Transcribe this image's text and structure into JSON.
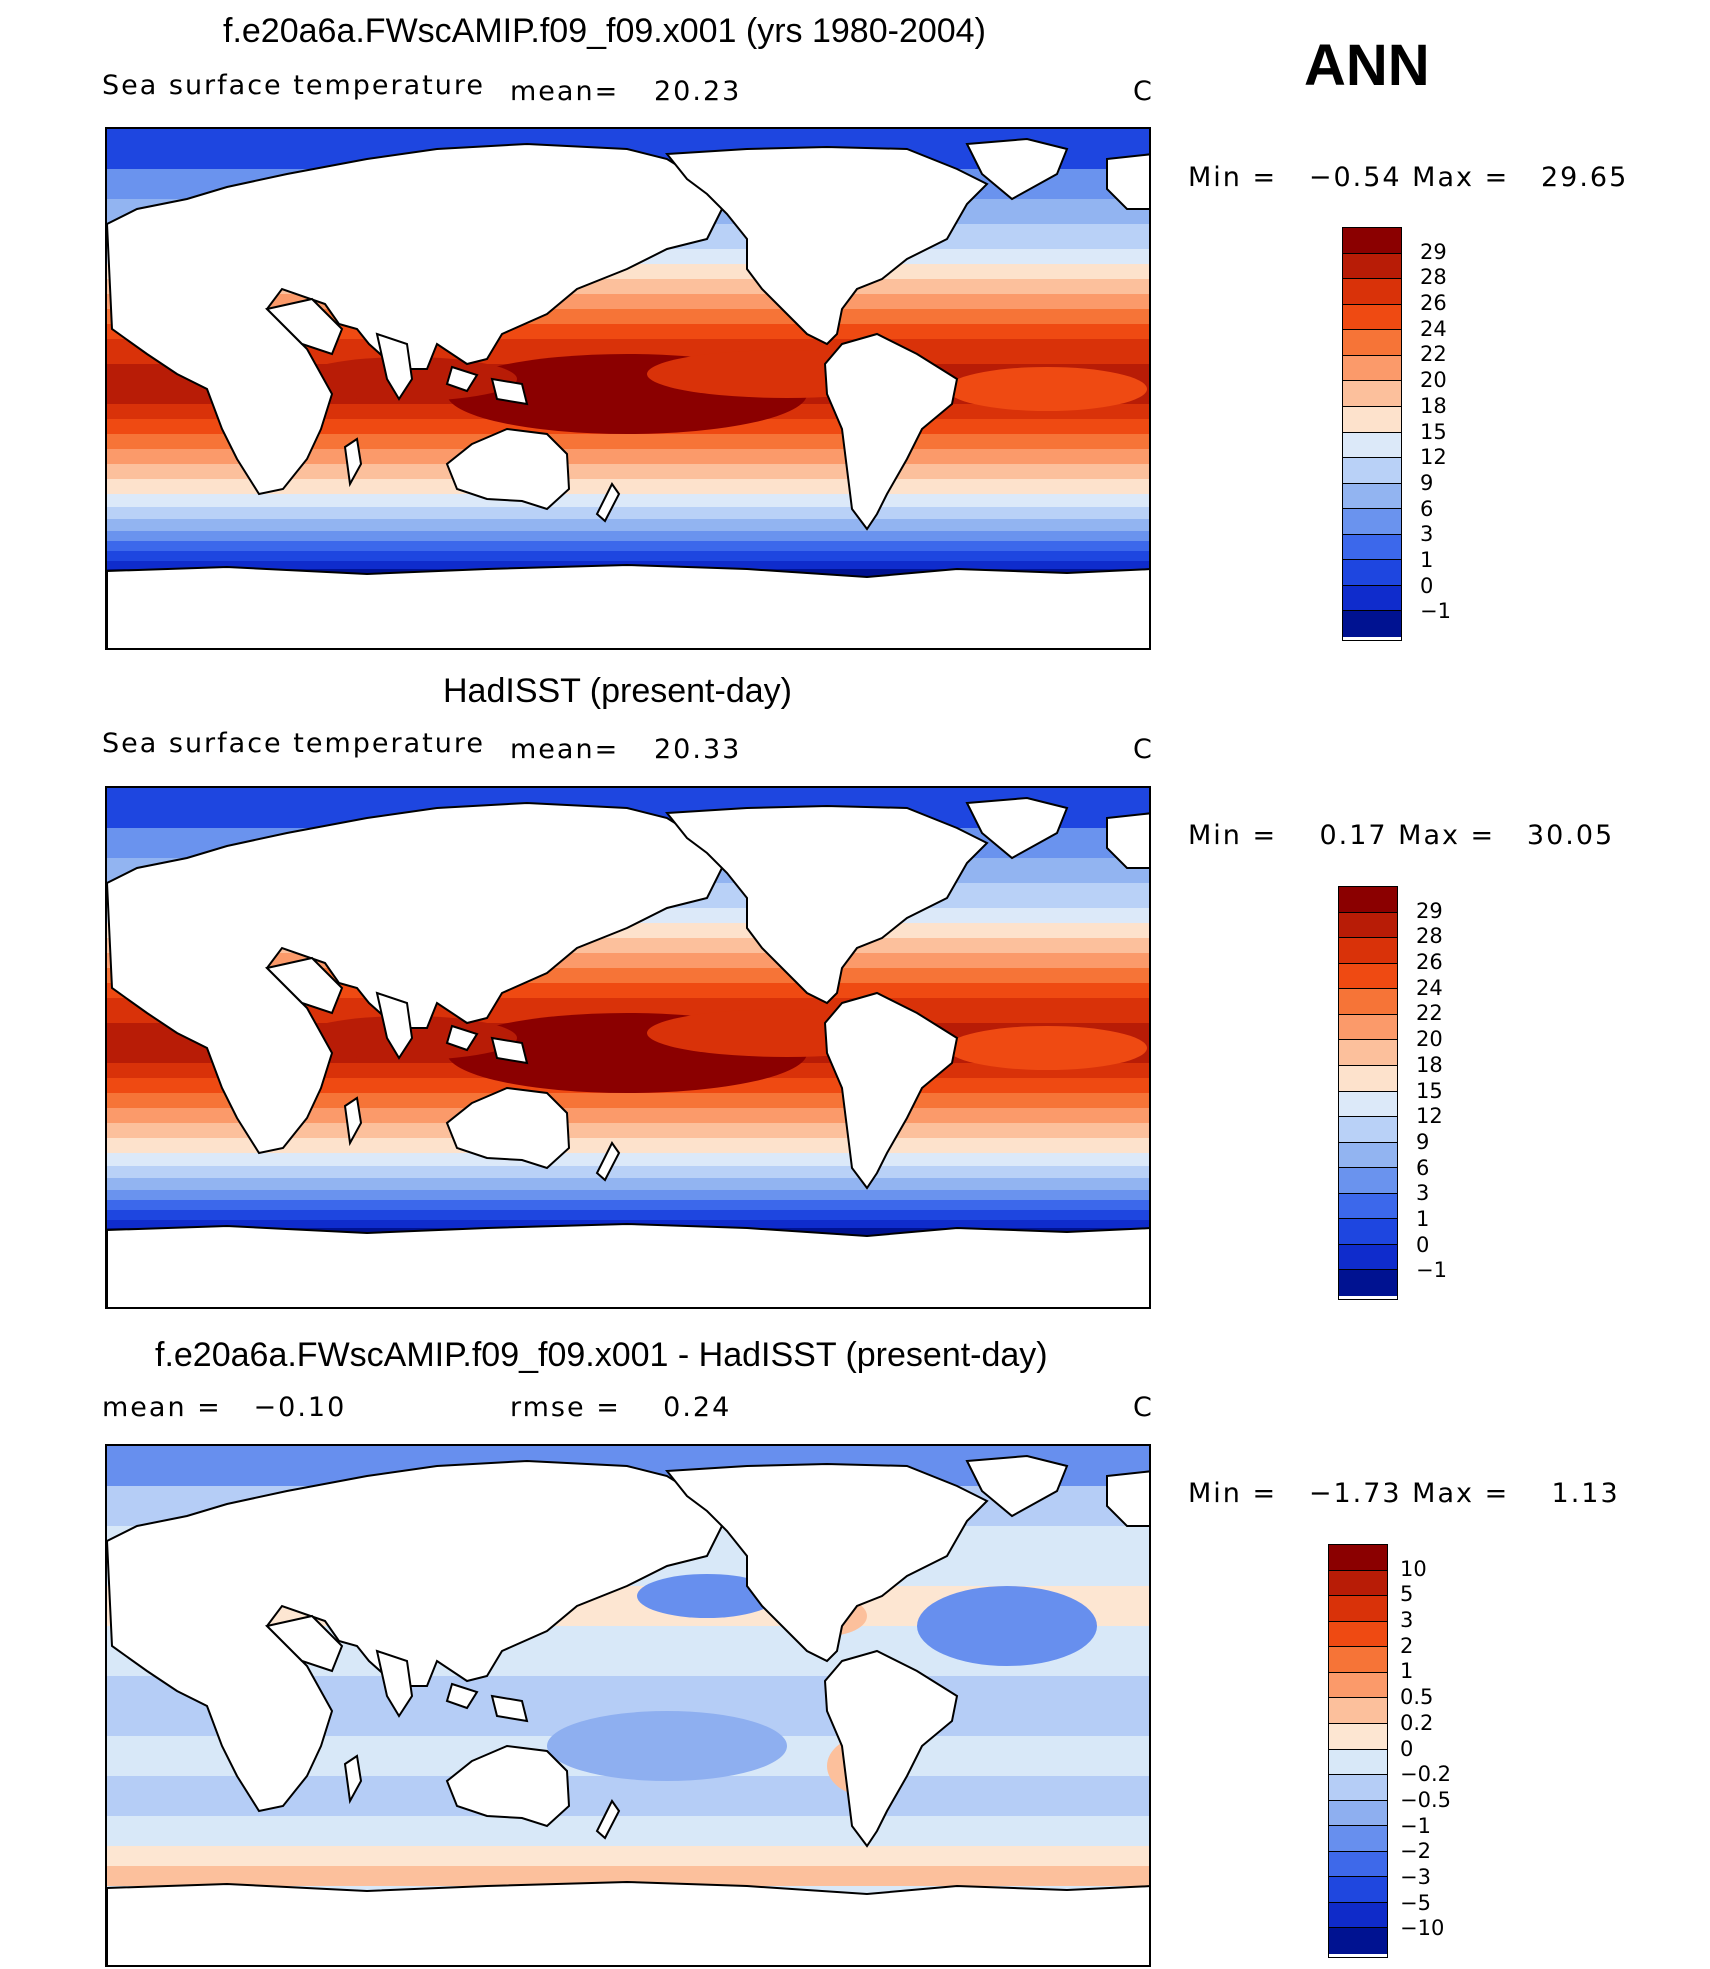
{
  "season": "ANN",
  "panels": [
    {
      "title": "f.e20a6a.FWscAMIP.f09_f09.x001 (yrs 1980-2004)",
      "variable": "Sea surface temperature",
      "mean_label": "mean=",
      "mean_value": "20.23",
      "units": "C",
      "min_max": "Min =   −0.54 Max =   29.65",
      "colorbar_labels": [
        "29",
        "28",
        "26",
        "24",
        "22",
        "20",
        "18",
        "15",
        "12",
        "9",
        "6",
        "3",
        "1",
        "0",
        "−1"
      ]
    },
    {
      "title": "HadISST (present-day)",
      "variable": "Sea surface temperature",
      "mean_label": "mean=",
      "mean_value": "20.33",
      "units": "C",
      "min_max": "Min =    0.17 Max =   30.05",
      "colorbar_labels": [
        "29",
        "28",
        "26",
        "24",
        "22",
        "20",
        "18",
        "15",
        "12",
        "9",
        "6",
        "3",
        "1",
        "0",
        "−1"
      ]
    },
    {
      "title": "f.e20a6a.FWscAMIP.f09_f09.x001 - HadISST (present-day)",
      "mean_text": "mean =   −0.10",
      "rmse_text": "rmse =    0.24",
      "units": "C",
      "min_max": "Min =   −1.73 Max =    1.13",
      "colorbar_labels": [
        "10",
        "5",
        "3",
        "2",
        "1",
        "0.5",
        "0.2",
        "0",
        "−0.2",
        "−0.5",
        "−1",
        "−2",
        "−3",
        "−5",
        "−10"
      ]
    }
  ],
  "colors": {
    "abs_scale": [
      "#8b0000",
      "#b81c06",
      "#d93209",
      "#ef4a12",
      "#f67437",
      "#fb9a6a",
      "#fcc09c",
      "#fde2cc",
      "#dce9f9",
      "#b9d1f7",
      "#92b4f1",
      "#6a93ee",
      "#3c68eb",
      "#1e46e0",
      "#0f2ccc",
      "#001291"
    ],
    "diff_scale": [
      "#8b0000",
      "#b81c06",
      "#d93209",
      "#ef4a12",
      "#f67437",
      "#fb9a6a",
      "#fcc09c",
      "#fde6d2",
      "#d8e8f8",
      "#b5cdf6",
      "#8eaff0",
      "#678fee",
      "#3e69ea",
      "#1f47df",
      "#0f2bc9",
      "#001291"
    ],
    "land": "#ffffff",
    "coast": "#000000"
  }
}
